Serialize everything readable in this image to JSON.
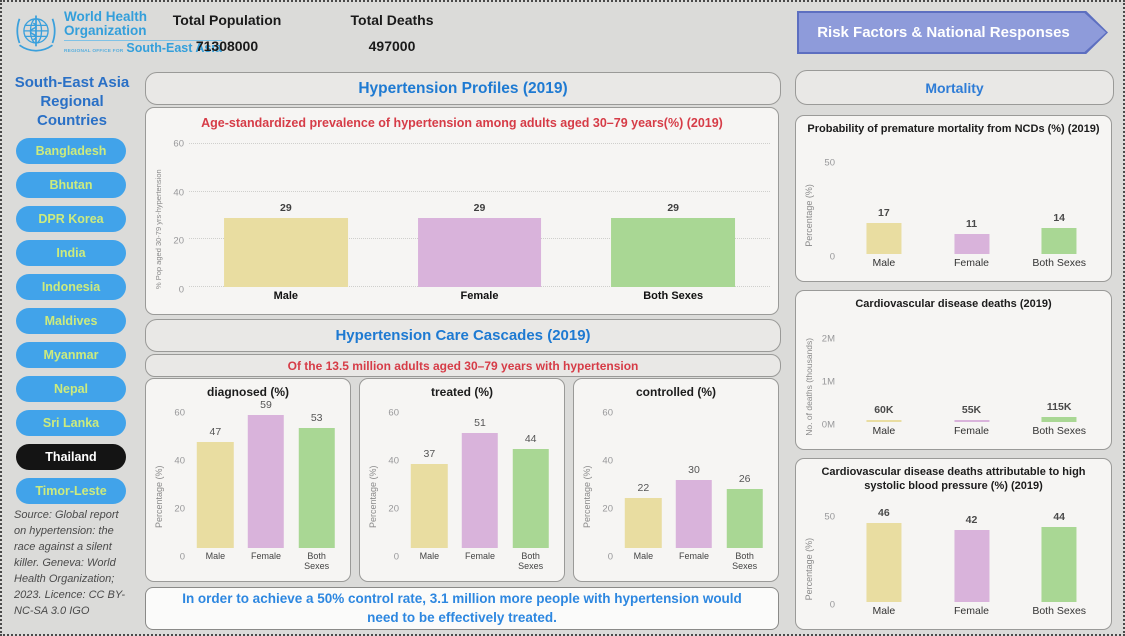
{
  "header": {
    "logo": {
      "org_line1": "World Health",
      "org_line2": "Organization",
      "office_prefix": "REGIONAL OFFICE FOR",
      "region": "South-East Asia"
    },
    "stats": [
      {
        "label": "Total Population",
        "value": "71308000"
      },
      {
        "label": "Total Deaths",
        "value": "497000"
      }
    ]
  },
  "nav": {
    "risk_button_label": "Risk Factors & National Responses"
  },
  "sidebar": {
    "title": "South-East Asia Regional Countries",
    "countries": [
      {
        "label": "Bangladesh",
        "selected": false
      },
      {
        "label": "Bhutan",
        "selected": false
      },
      {
        "label": "DPR Korea",
        "selected": false
      },
      {
        "label": "India",
        "selected": false
      },
      {
        "label": "Indonesia",
        "selected": false
      },
      {
        "label": "Maldives",
        "selected": false
      },
      {
        "label": "Myanmar",
        "selected": false
      },
      {
        "label": "Nepal",
        "selected": false
      },
      {
        "label": "Sri Lanka",
        "selected": false
      },
      {
        "label": "Thailand",
        "selected": true
      },
      {
        "label": "Timor-Leste",
        "selected": false
      }
    ],
    "source": "Source: Global report on hypertension: the race against a silent killer. Geneva: World Health Organization; 2023. Licence: CC BY-NC-SA 3.0 IGO"
  },
  "main": {
    "profiles_header": "Hypertension Profiles (2019)",
    "cascades_header": "Hypertension Care Cascades (2019)",
    "cascades_subtitle": "Of the 13.5 million adults aged 30–79 years with hypertension",
    "note": "In order to achieve a 50% control rate, 3.1 million more people with hypertension would need to be effectively treated."
  },
  "mortality": {
    "header": "Mortality"
  },
  "colors": {
    "bar_male": "#e9dda1",
    "bar_female": "#d9b3db",
    "bar_both_sexes": "#a9d794",
    "accent_blue": "#1e7ad2",
    "accent_red": "#d63c47",
    "country_button_blue": "#41a3ea",
    "country_button_text": "#cdeb7d",
    "selected_country_bg": "#141414",
    "arrow_button_fill": "#8e9bda"
  },
  "chart_data": {
    "prevalence": {
      "type": "bar",
      "title": "Age-standardized prevalence of hypertension among adults aged 30–79 years(%) (2019)",
      "categories": [
        "Male",
        "Female",
        "Both Sexes"
      ],
      "values": [
        29,
        29,
        29
      ],
      "labels": [
        "29",
        "29",
        "29"
      ],
      "ylabel": "% Pop aged 30-79 yrs-hypertension",
      "ymax": 65,
      "yticks": [
        {
          "label": "0",
          "value": 0
        },
        {
          "label": "20",
          "value": 20
        },
        {
          "label": "40",
          "value": 40
        },
        {
          "label": "60",
          "value": 60
        }
      ],
      "grid": true,
      "bar_width": "64%",
      "colors": [
        "#e9dda1",
        "#d9b3db",
        "#a9d794"
      ]
    },
    "diagnosed": {
      "type": "bar",
      "title": "diagnosed (%)",
      "categories": [
        "Male",
        "Female",
        "Both Sexes"
      ],
      "values": [
        47,
        59,
        53
      ],
      "labels": [
        "47",
        "59",
        "53"
      ],
      "ylabel": "Percentage (%)",
      "ymax": 65,
      "yticks": [
        {
          "label": "0",
          "value": 0
        },
        {
          "label": "20",
          "value": 20
        },
        {
          "label": "40",
          "value": 40
        },
        {
          "label": "60",
          "value": 60
        }
      ],
      "grid": false,
      "bar_width": "72%",
      "colors": [
        "#e9dda1",
        "#d9b3db",
        "#a9d794"
      ]
    },
    "treated": {
      "type": "bar",
      "title": "treated (%)",
      "categories": [
        "Male",
        "Female",
        "Both Sexes"
      ],
      "values": [
        37,
        51,
        44
      ],
      "labels": [
        "37",
        "51",
        "44"
      ],
      "ylabel": "Percentage (%)",
      "ymax": 65,
      "yticks": [
        {
          "label": "0",
          "value": 0
        },
        {
          "label": "20",
          "value": 20
        },
        {
          "label": "40",
          "value": 40
        },
        {
          "label": "60",
          "value": 60
        }
      ],
      "grid": false,
      "bar_width": "72%",
      "colors": [
        "#e9dda1",
        "#d9b3db",
        "#a9d794"
      ]
    },
    "controlled": {
      "type": "bar",
      "title": "controlled (%)",
      "categories": [
        "Male",
        "Female",
        "Both Sexes"
      ],
      "values": [
        22,
        30,
        26
      ],
      "labels": [
        "22",
        "30",
        "26"
      ],
      "ylabel": "Percentage (%)",
      "ymax": 65,
      "yticks": [
        {
          "label": "0",
          "value": 0
        },
        {
          "label": "20",
          "value": 20
        },
        {
          "label": "40",
          "value": 40
        },
        {
          "label": "60",
          "value": 60
        }
      ],
      "grid": false,
      "bar_width": "72%",
      "colors": [
        "#e9dda1",
        "#d9b3db",
        "#a9d794"
      ]
    },
    "ncd_mortality": {
      "type": "bar",
      "title": "Probability of premature mortality from NCDs (%) (2019)",
      "categories": [
        "Male",
        "Female",
        "Both Sexes"
      ],
      "values": [
        17,
        11,
        14
      ],
      "labels": [
        "17",
        "11",
        "14"
      ],
      "ylabel": "Percentage (%)",
      "ymax": 63,
      "yticks": [
        {
          "label": "0",
          "value": 0
        },
        {
          "label": "50",
          "value": 50
        }
      ],
      "grid": false,
      "bar_width": "40%",
      "colors": [
        "#e9dda1",
        "#d9b3db",
        "#a9d794"
      ]
    },
    "cvd_deaths": {
      "type": "bar",
      "title": "Cardiovascular disease deaths (2019)",
      "categories": [
        "Male",
        "Female",
        "Both Sexes"
      ],
      "values": [
        60000,
        55000,
        115000
      ],
      "labels": [
        "60K",
        "55K",
        "115K"
      ],
      "ylabel": "No. of deaths (thousands)",
      "ymax": 2600000,
      "yticks": [
        {
          "label": "0M",
          "value": 0
        },
        {
          "label": "1M",
          "value": 1000000
        },
        {
          "label": "2M",
          "value": 2000000
        }
      ],
      "grid": false,
      "bar_width": "40%",
      "colors": [
        "#e9dda1",
        "#d9b3db",
        "#a9d794"
      ]
    },
    "cvd_attributable": {
      "type": "bar",
      "title": "Cardiovascular disease deaths attributable to high systolic blood pressure (%) (2019)",
      "categories": [
        "Male",
        "Female",
        "Both Sexes"
      ],
      "values": [
        46,
        42,
        44
      ],
      "labels": [
        "46",
        "42",
        "44"
      ],
      "ylabel": "Percentage (%)",
      "ymax": 62,
      "yticks": [
        {
          "label": "0",
          "value": 0
        },
        {
          "label": "50",
          "value": 50
        }
      ],
      "grid": false,
      "bar_width": "40%",
      "colors": [
        "#e9dda1",
        "#d9b3db",
        "#a9d794"
      ]
    }
  }
}
